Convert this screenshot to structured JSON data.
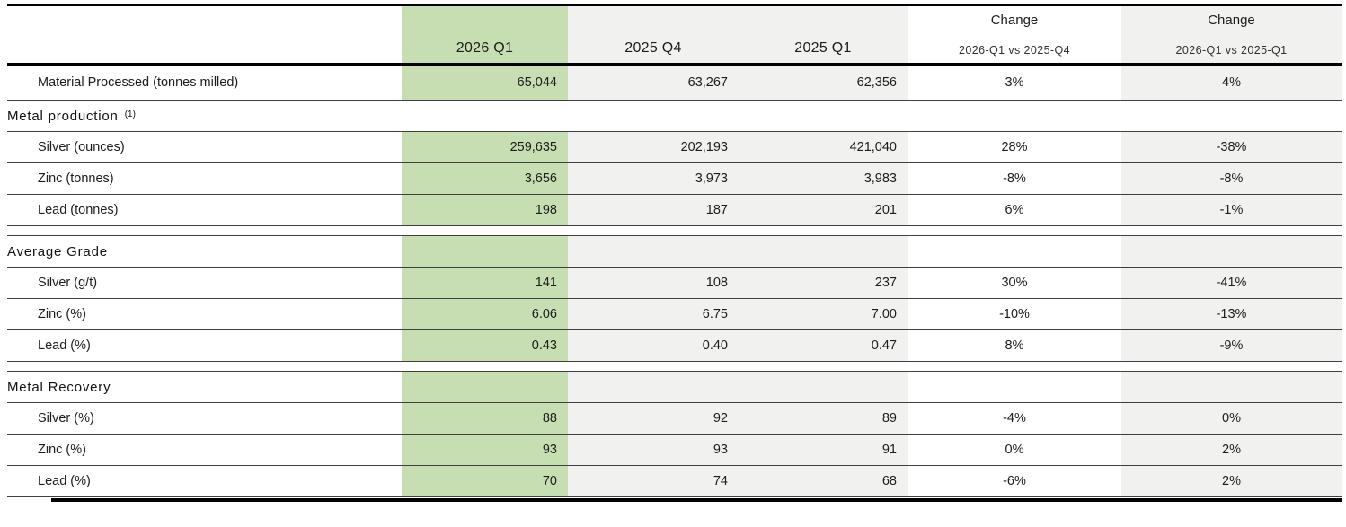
{
  "colors": {
    "highlight_green": "#c7deb3",
    "column_gray": "#f1f1f0",
    "rule_black": "#000000",
    "row_line": "#3f3f3f"
  },
  "header": {
    "change_label_1": "Change",
    "change_label_2": "Change",
    "col_2026_q1": "2026 Q1",
    "col_2025_q4": "2025 Q4",
    "col_2025_q1": "2025 Q1",
    "change_sub_1": "2026-Q1 vs 2025-Q4",
    "change_sub_2": "2026-Q1 vs 2025-Q1"
  },
  "rows": [
    {
      "type": "data",
      "first": true,
      "label": "Material Processed (tonnes milled)",
      "values": [
        "65,044",
        "63,267",
        "62,356",
        "3%",
        "4%"
      ]
    },
    {
      "type": "section",
      "filled": false,
      "label": "Metal production",
      "footnote": "(1)"
    },
    {
      "type": "data",
      "label": "Silver (ounces)",
      "values": [
        "259,635",
        "202,193",
        "421,040",
        "28%",
        "-38%"
      ]
    },
    {
      "type": "data",
      "label": "Zinc (tonnes)",
      "values": [
        "3,656",
        "3,973",
        "3,983",
        "-8%",
        "-8%"
      ]
    },
    {
      "type": "data",
      "label": "Lead (tonnes)",
      "values": [
        "198",
        "187",
        "201",
        "6%",
        "-1%"
      ]
    },
    {
      "type": "spacer"
    },
    {
      "type": "section",
      "filled": true,
      "label": "Average Grade"
    },
    {
      "type": "data",
      "label": "Silver (g/t)",
      "values": [
        "141",
        "108",
        "237",
        "30%",
        "-41%"
      ]
    },
    {
      "type": "data",
      "label": "Zinc (%)",
      "values": [
        "6.06",
        "6.75",
        "7.00",
        "-10%",
        "-13%"
      ]
    },
    {
      "type": "data",
      "label": "Lead (%)",
      "values": [
        "0.43",
        "0.40",
        "0.47",
        "8%",
        "-9%"
      ]
    },
    {
      "type": "spacer"
    },
    {
      "type": "section",
      "filled": true,
      "label": "Metal Recovery"
    },
    {
      "type": "data",
      "label": "Silver (%)",
      "values": [
        "88",
        "92",
        "89",
        "-4%",
        "0%"
      ]
    },
    {
      "type": "data",
      "label": "Zinc (%)",
      "values": [
        "93",
        "93",
        "91",
        "0%",
        "2%"
      ]
    },
    {
      "type": "data",
      "label": "Lead (%)",
      "values": [
        "70",
        "74",
        "68",
        "-6%",
        "2%"
      ]
    }
  ]
}
